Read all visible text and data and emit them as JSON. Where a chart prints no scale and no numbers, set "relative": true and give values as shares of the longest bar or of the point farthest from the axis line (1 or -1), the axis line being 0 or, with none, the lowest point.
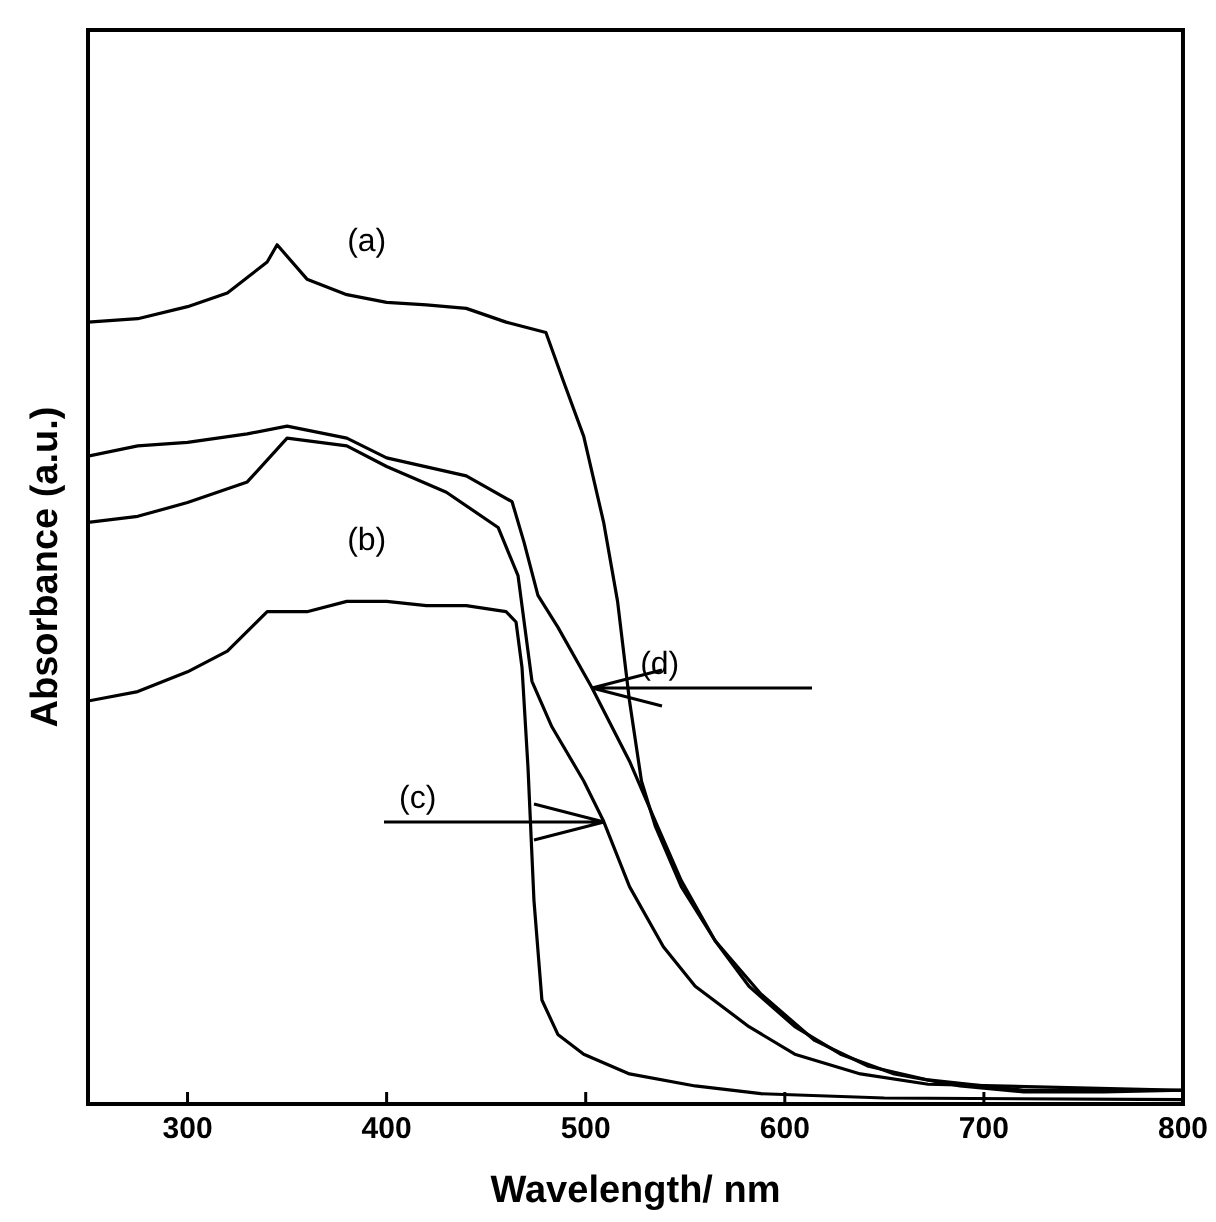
{
  "chart_data": {
    "type": "line",
    "relative": true,
    "xlabel": "Wavelength/ nm",
    "ylabel": "Absorbance (a.u.)",
    "xlim": [
      250,
      800
    ],
    "xticks": [
      300,
      400,
      500,
      600,
      700,
      800
    ],
    "grid": false,
    "legend": false,
    "marker": "none",
    "line_style": "solid",
    "series": [
      {
        "color": "#000000",
        "x": [
          250,
          275,
          300,
          320,
          340,
          345,
          360,
          380,
          400,
          420,
          440,
          460,
          480,
          489,
          499,
          509,
          516,
          522,
          528,
          535,
          548,
          565,
          582,
          605,
          628,
          655,
          688,
          720,
          760,
          800
        ],
        "values": [
          0.91,
          0.914,
          0.928,
          0.944,
          0.98,
          1.0,
          0.96,
          0.942,
          0.933,
          0.93,
          0.926,
          0.91,
          0.898,
          0.84,
          0.777,
          0.677,
          0.585,
          0.469,
          0.376,
          0.323,
          0.253,
          0.19,
          0.137,
          0.09,
          0.058,
          0.035,
          0.021,
          0.014,
          0.014,
          0.016
        ]
      },
      {
        "color": "#000000",
        "x": [
          250,
          275,
          300,
          320,
          340,
          360,
          380,
          400,
          420,
          440,
          460,
          465,
          468,
          471,
          474,
          478,
          486,
          499,
          522,
          555,
          588,
          650,
          800
        ],
        "values": [
          0.469,
          0.48,
          0.503,
          0.527,
          0.573,
          0.573,
          0.585,
          0.585,
          0.58,
          0.58,
          0.573,
          0.561,
          0.508,
          0.392,
          0.237,
          0.121,
          0.081,
          0.058,
          0.035,
          0.021,
          0.012,
          0.007,
          0.005
        ]
      },
      {
        "color": "#000000",
        "x": [
          250,
          275,
          300,
          330,
          350,
          380,
          400,
          430,
          456,
          466,
          473,
          483,
          499,
          509,
          522,
          539,
          555,
          582,
          605,
          638,
          672,
          800
        ],
        "values": [
          0.677,
          0.684,
          0.7,
          0.724,
          0.775,
          0.766,
          0.742,
          0.712,
          0.671,
          0.615,
          0.492,
          0.439,
          0.376,
          0.329,
          0.253,
          0.183,
          0.137,
          0.09,
          0.058,
          0.035,
          0.023,
          0.016
        ]
      },
      {
        "color": "#000000",
        "x": [
          250,
          275,
          300,
          330,
          350,
          380,
          400,
          440,
          463,
          469,
          476,
          486,
          503,
          522,
          535,
          548,
          565,
          588,
          615,
          642,
          672,
          720,
          800
        ],
        "values": [
          0.754,
          0.766,
          0.77,
          0.78,
          0.789,
          0.775,
          0.752,
          0.731,
          0.701,
          0.654,
          0.592,
          0.555,
          0.485,
          0.399,
          0.329,
          0.26,
          0.19,
          0.128,
          0.074,
          0.044,
          0.028,
          0.016,
          0.016
        ]
      }
    ],
    "annotations": [
      {
        "text": "(a)",
        "x": 390,
        "y": 0.933
      },
      {
        "text": "(b)",
        "x": 390,
        "y": 0.585
      },
      {
        "text": "(c)",
        "x": 509,
        "y": 0.329
      },
      {
        "text": "(d)",
        "x": 503,
        "y": 0.485
      }
    ]
  }
}
